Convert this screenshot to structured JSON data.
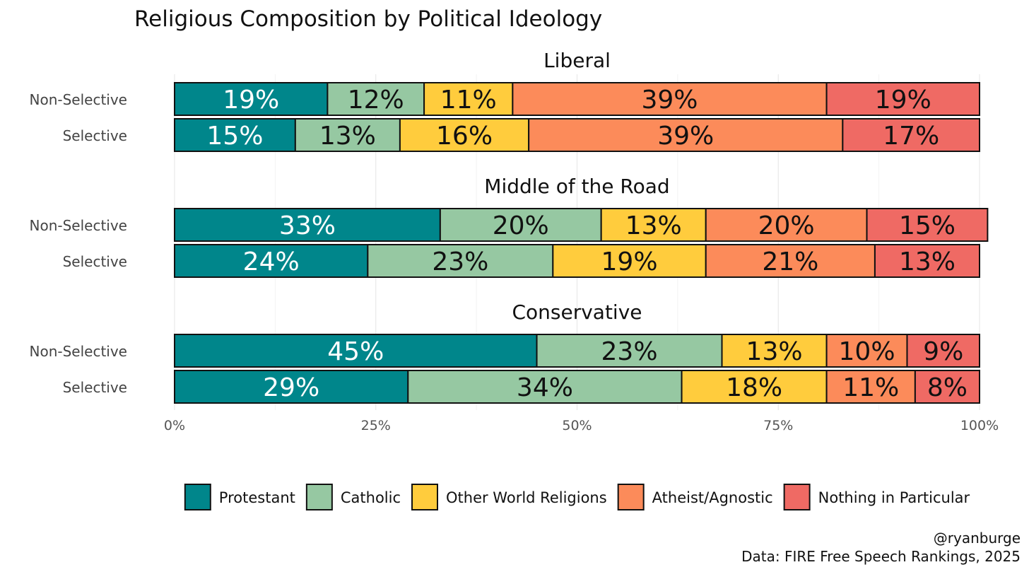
{
  "chart_data": {
    "type": "bar",
    "orientation": "horizontal",
    "stacked": "percent",
    "title": "Religious Composition by Political Ideology",
    "facet_labels": [
      "Liberal",
      "Middle of the Road",
      "Conservative"
    ],
    "row_labels": [
      "Non-Selective",
      "Selective"
    ],
    "series_names": [
      "Protestant",
      "Catholic",
      "Other World Religions",
      "Atheist/Agnostic",
      "Nothing in Particular"
    ],
    "colors": [
      "#00868b",
      "#96c8a2",
      "#ffcc3d",
      "#fc8b5a",
      "#ef6a64"
    ],
    "label_colors": [
      "#ffffff",
      "#111111",
      "#111111",
      "#111111",
      "#111111"
    ],
    "facets": [
      {
        "name": "Liberal",
        "rows": [
          {
            "label": "Non-Selective",
            "values": [
              19,
              12,
              11,
              39,
              19
            ]
          },
          {
            "label": "Selective",
            "values": [
              15,
              13,
              16,
              39,
              17
            ]
          }
        ]
      },
      {
        "name": "Middle of the Road",
        "rows": [
          {
            "label": "Non-Selective",
            "values": [
              33,
              20,
              13,
              20,
              15
            ]
          },
          {
            "label": "Selective",
            "values": [
              24,
              23,
              19,
              21,
              13
            ]
          }
        ]
      },
      {
        "name": "Conservative",
        "rows": [
          {
            "label": "Non-Selective",
            "values": [
              45,
              23,
              13,
              10,
              9
            ]
          },
          {
            "label": "Selective",
            "values": [
              29,
              34,
              18,
              11,
              8
            ]
          }
        ]
      }
    ],
    "xlim": [
      0,
      100
    ],
    "x_ticks": [
      0,
      25,
      50,
      75,
      100
    ],
    "x_tick_labels": [
      "0%",
      "25%",
      "50%",
      "75%",
      "100%"
    ],
    "grid": true,
    "legend_position": "bottom",
    "caption_lines": [
      "@ryanburge",
      "Data: FIRE Free Speech Rankings, 2025"
    ]
  }
}
